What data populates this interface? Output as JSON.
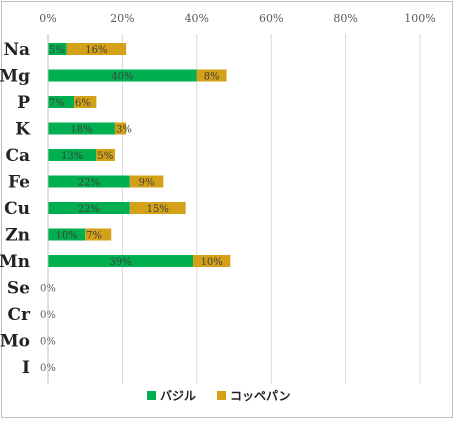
{
  "chart_data": {
    "type": "bar",
    "orientation": "horizontal",
    "stacked": true,
    "categories": [
      "Na",
      "Mg",
      "P",
      "K",
      "Ca",
      "Fe",
      "Cu",
      "Zn",
      "Mn",
      "Se",
      "Cr",
      "Mo",
      "I"
    ],
    "series": [
      {
        "name": "バジル",
        "color": "#00b050",
        "values": [
          5,
          40,
          7,
          18,
          13,
          22,
          22,
          10,
          39,
          0,
          0,
          0,
          0
        ],
        "labels": [
          "5%",
          "40%",
          "7%",
          "18%",
          "13%",
          "22%",
          "22%",
          "10%",
          "39%",
          "0%",
          "0%",
          "0%",
          "0%"
        ]
      },
      {
        "name": "コッペパン",
        "color": "#d4a017",
        "values": [
          16,
          8,
          6,
          3,
          5,
          9,
          15,
          7,
          10,
          0,
          0,
          0,
          0
        ],
        "labels": [
          "16%",
          "8%",
          "6%",
          "3%",
          "5%",
          "9%",
          "15%",
          "7%",
          "10%",
          "",
          "",
          "",
          ""
        ]
      }
    ],
    "x_ticks": [
      "0%",
      "20%",
      "40%",
      "60%",
      "80%",
      "100%"
    ],
    "xlim": [
      0,
      100
    ],
    "grid": true,
    "legend_position": "bottom"
  }
}
